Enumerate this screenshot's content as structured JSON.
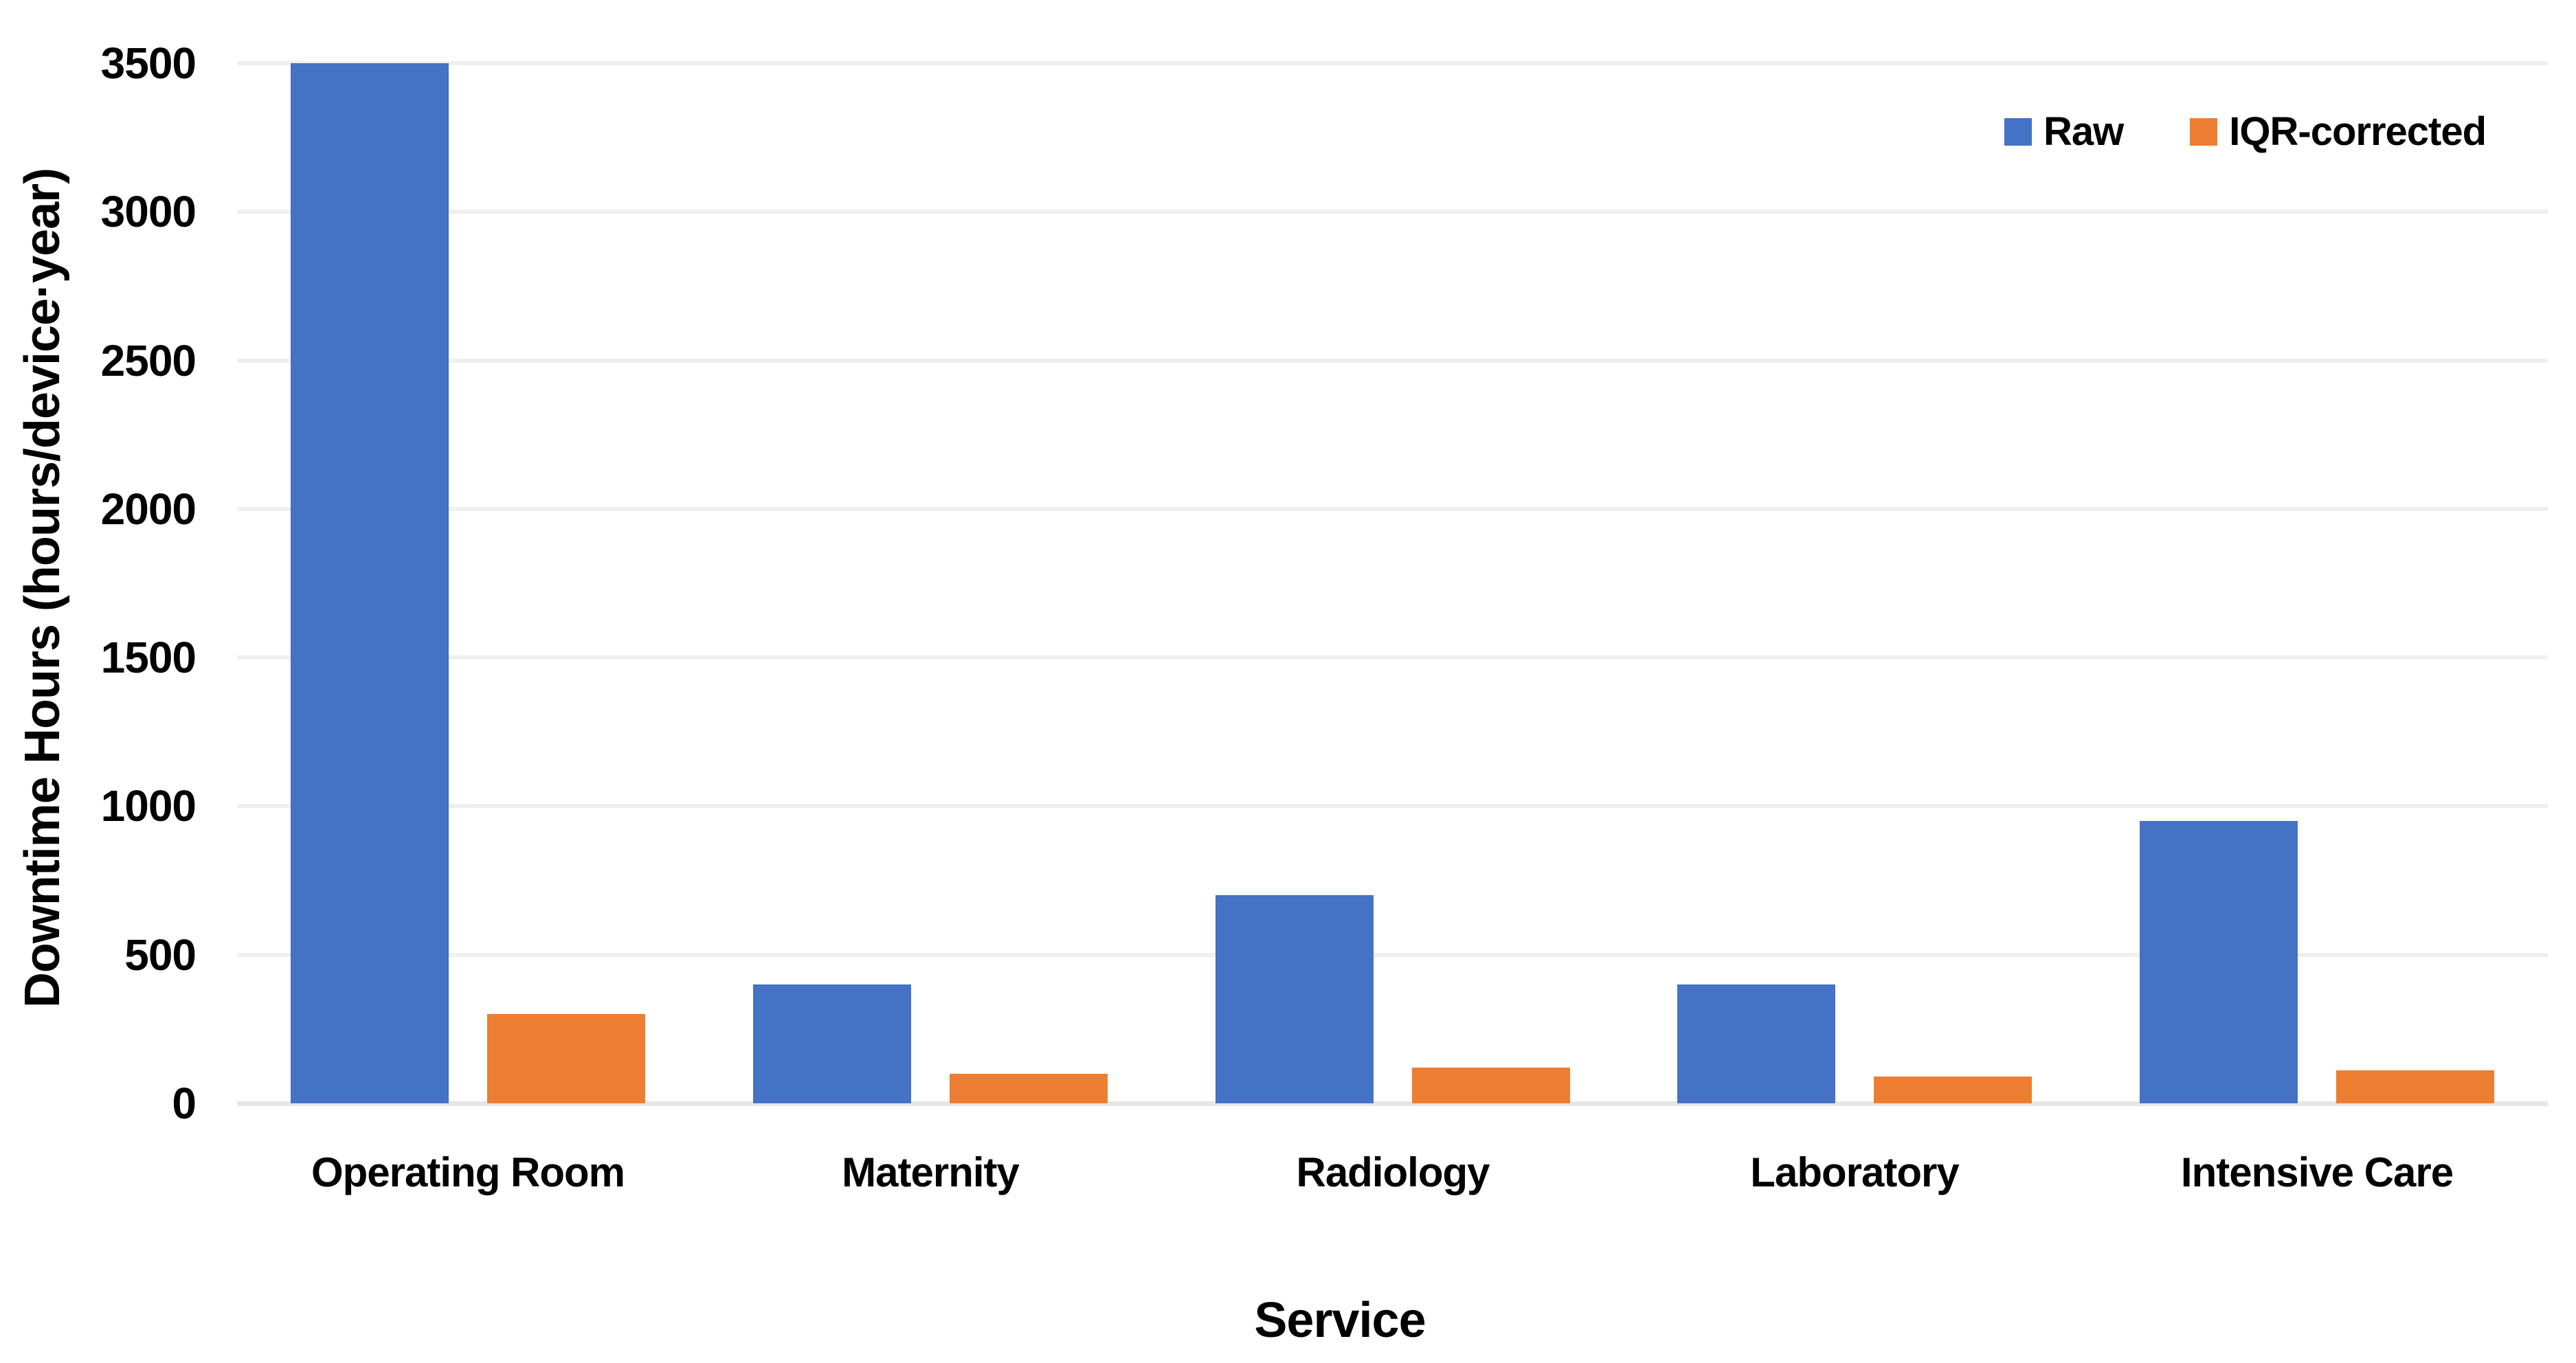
{
  "chart_data": {
    "type": "bar",
    "title": "",
    "xlabel": "Service",
    "ylabel": "Downtime Hours (hours/device·year)",
    "categories": [
      "Operating Room",
      "Maternity",
      "Radiology",
      "Laboratory",
      "Intensive Care"
    ],
    "series": [
      {
        "name": "Raw",
        "color": "#4472C4",
        "values": [
          3500,
          400,
          700,
          400,
          950
        ]
      },
      {
        "name": "IQR-corrected",
        "color": "#ED7D31",
        "values": [
          300,
          100,
          120,
          90,
          110
        ]
      }
    ],
    "ylim": [
      0,
      3500
    ],
    "yticks": [
      0,
      500,
      1000,
      1500,
      2000,
      2500,
      3000,
      3500
    ],
    "grid": "horizontal",
    "legend_position": "top-right"
  },
  "legend": {
    "items": [
      {
        "label": "Raw",
        "color": "#4472C4"
      },
      {
        "label": "IQR-corrected",
        "color": "#ED7D31"
      }
    ]
  },
  "colors": {
    "grid": "#efefef",
    "axis_line": "#e6e6e6",
    "text": "#000000",
    "background": "#ffffff"
  }
}
